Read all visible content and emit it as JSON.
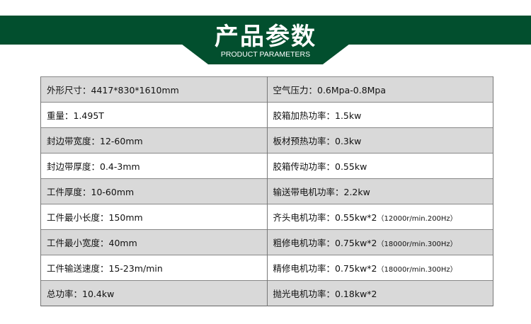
{
  "header": {
    "title": "产品参数",
    "subtitle": "PRODUCT PARAMETERS",
    "color": "#024f2e"
  },
  "rows": [
    {
      "left": "外形尺寸：4417*830*1610mm",
      "right": "空气压力：0.6Mpa-0.8Mpa",
      "right_note": ""
    },
    {
      "left": "重量：1.495T",
      "right": "胶箱加热功率：1.5kw",
      "right_note": ""
    },
    {
      "left": "封边带宽度：12-60mm",
      "right": "板材预热功率：0.3kw",
      "right_note": ""
    },
    {
      "left": "封边带厚度：0.4-3mm",
      "right": "胶箱传动功率：0.55kw",
      "right_note": ""
    },
    {
      "left": "工件厚度：10-60mm",
      "right": "输送带电机功率：2.2kw",
      "right_note": ""
    },
    {
      "left": "工件最小长度：150mm",
      "right": "齐头电机功率：0.55kw*2",
      "right_note": "（12000r/min.200Hz）"
    },
    {
      "left": "工件最小宽度：40mm",
      "right": "粗修电机功率：0.75kw*2",
      "right_note": "（18000r/min.300Hz）"
    },
    {
      "left": "工件输送速度：15-23m/min",
      "right": "精修电机功率：0.75kw*2",
      "right_note": "（18000r/min.300Hz）"
    },
    {
      "left": "总功率：10.4kw",
      "right": "抛光电机功率：0.18kw*2",
      "right_note": ""
    }
  ]
}
